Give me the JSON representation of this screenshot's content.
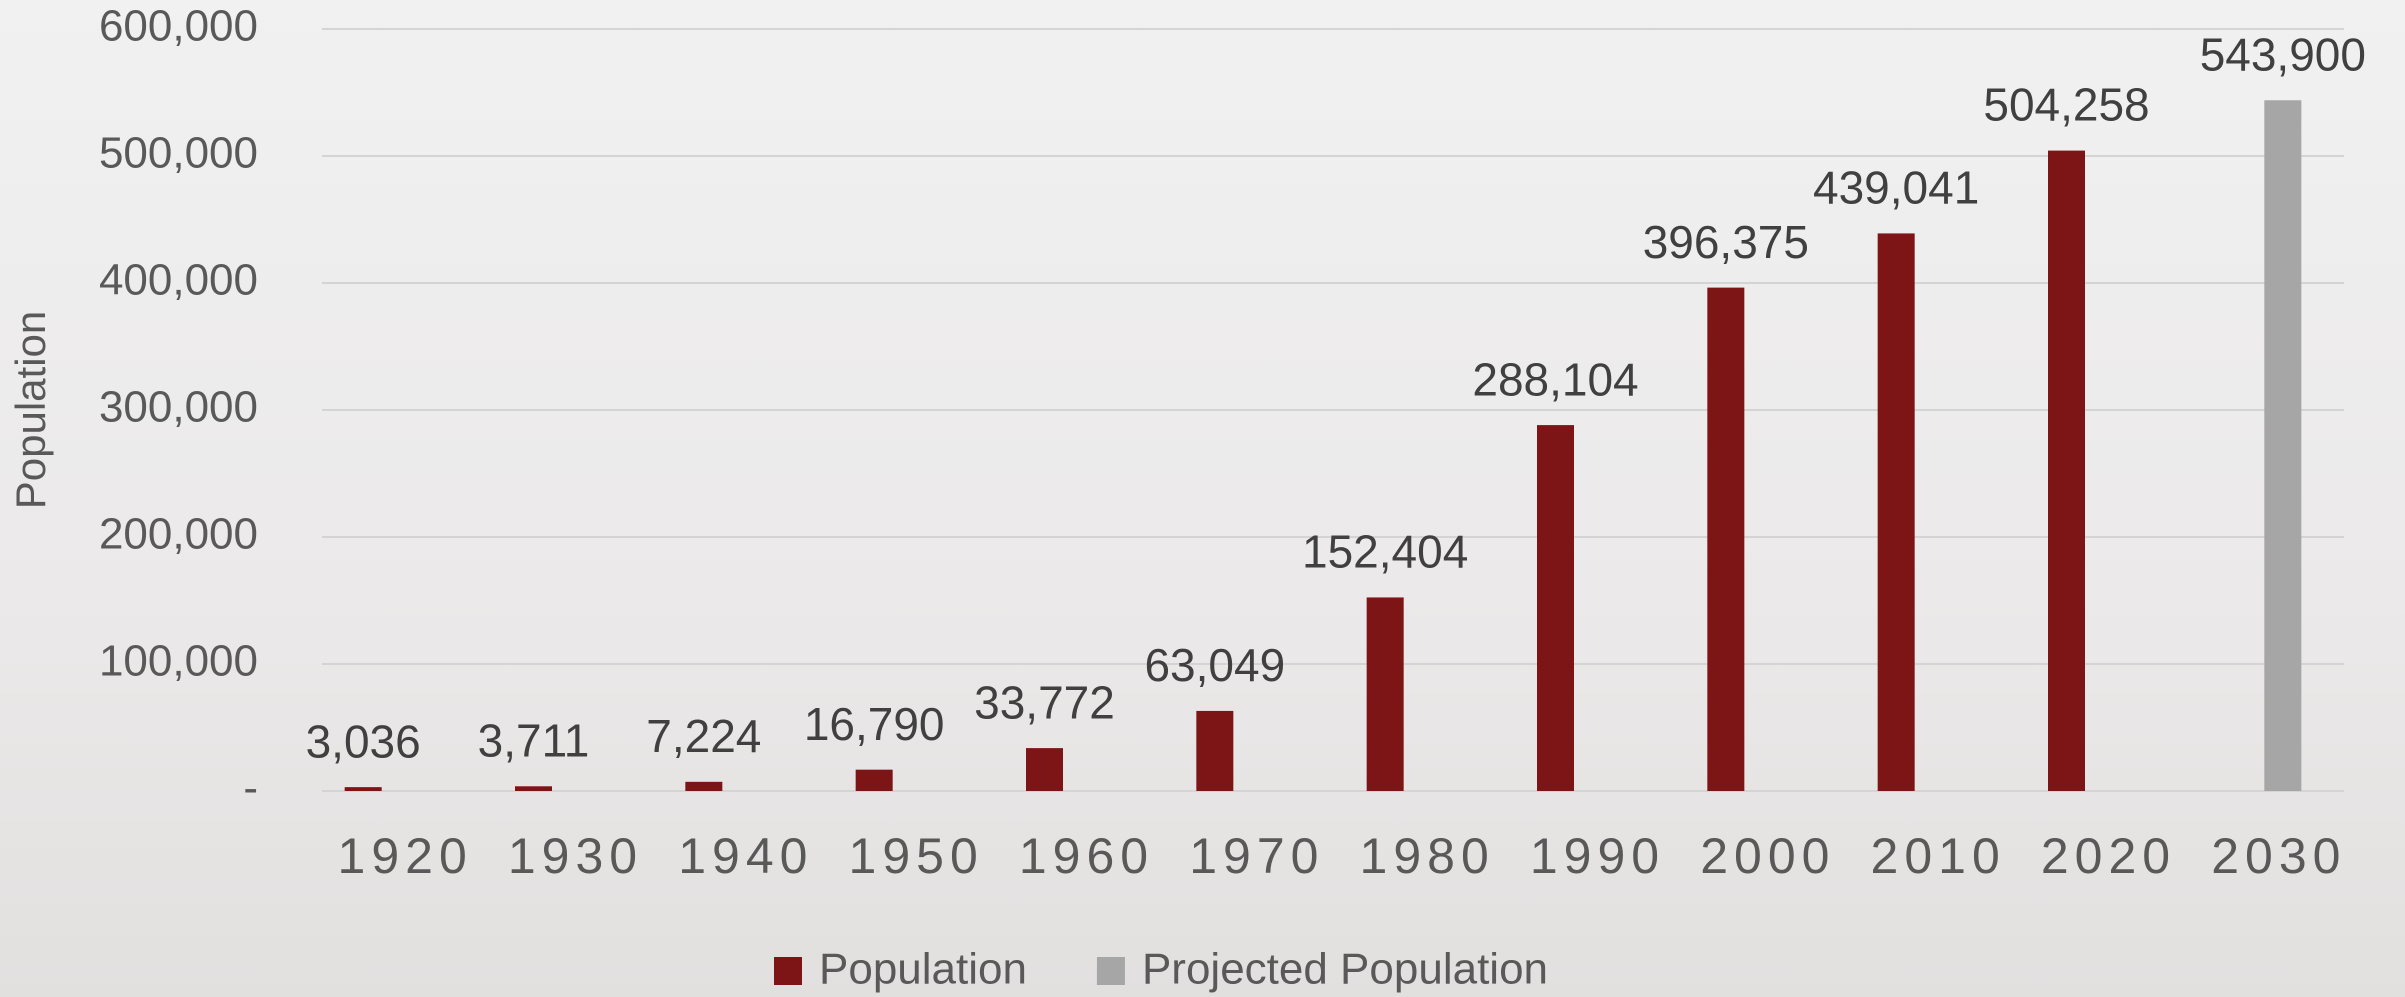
{
  "chart_data": {
    "type": "bar",
    "y_label": "Population",
    "categories": [
      "1920",
      "1930",
      "1940",
      "1950",
      "1960",
      "1970",
      "1980",
      "1990",
      "2000",
      "2010",
      "2020",
      "2030"
    ],
    "series": [
      {
        "name": "Population",
        "color": "#7d1416",
        "values": [
          3036,
          3711,
          7224,
          16790,
          33772,
          63049,
          152404,
          288104,
          396375,
          439041,
          504258,
          null
        ],
        "value_labels": [
          "3,036",
          "3,711",
          "7,224",
          "16,790",
          "33,772",
          "63,049",
          "152,404",
          "288,104",
          "396,375",
          "439,041",
          "504,258",
          null
        ]
      },
      {
        "name": "Projected Population",
        "color": "#a6a6a6",
        "values": [
          null,
          null,
          null,
          null,
          null,
          null,
          null,
          null,
          null,
          null,
          null,
          543900
        ],
        "value_labels": [
          null,
          null,
          null,
          null,
          null,
          null,
          null,
          null,
          null,
          null,
          null,
          "543,900"
        ]
      }
    ],
    "ylim": [
      0,
      600000
    ],
    "yticks": [
      {
        "value": 0,
        "label": "-"
      },
      {
        "value": 100000,
        "label": "100,000"
      },
      {
        "value": 200000,
        "label": "200,000"
      },
      {
        "value": 300000,
        "label": "300,000"
      },
      {
        "value": 400000,
        "label": "400,000"
      },
      {
        "value": 500000,
        "label": "500,000"
      },
      {
        "value": 600000,
        "label": "600,000"
      }
    ],
    "grid": true,
    "legend": "bottom"
  }
}
